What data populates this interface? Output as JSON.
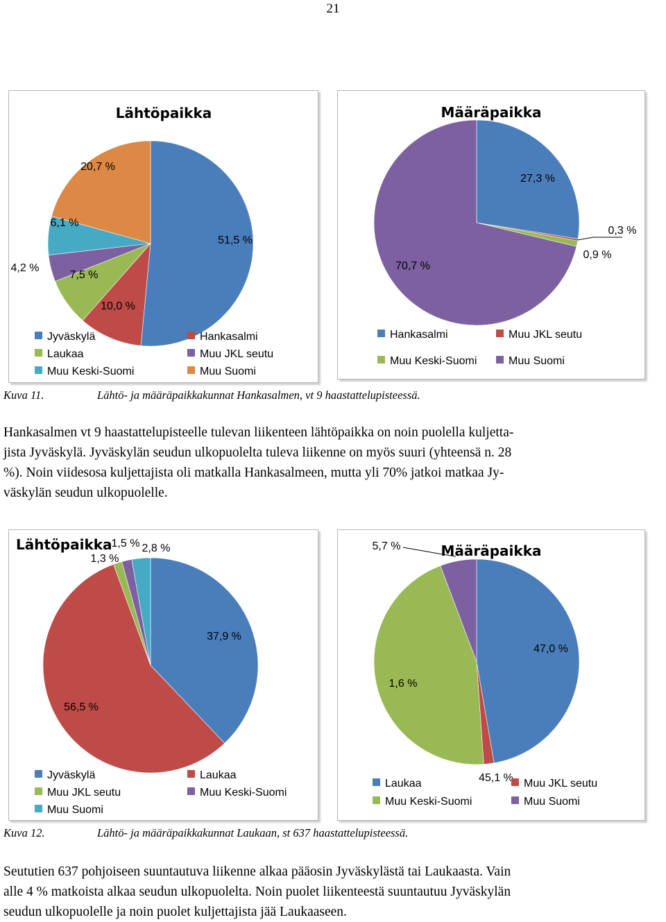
{
  "page_number": "21",
  "chart_data": [
    {
      "type": "pie",
      "title": "Lähtöpaikka",
      "slices": [
        {
          "name": "Jyväskylä",
          "value": 51.5,
          "label": "51,5 %",
          "color": "#4a7ebb"
        },
        {
          "name": "Hankasalmi",
          "value": 10.0,
          "label": "10,0 %",
          "color": "#be4b48"
        },
        {
          "name": "Laukaa",
          "value": 7.5,
          "label": "7,5 %",
          "color": "#98b954"
        },
        {
          "name": "Muu JKL seutu",
          "value": 4.2,
          "label": "4,2 %",
          "color": "#7d60a0"
        },
        {
          "name": "Muu Keski-Suomi",
          "value": 6.1,
          "label": "6,1 %",
          "color": "#46aac5"
        },
        {
          "name": "Muu Suomi",
          "value": 20.7,
          "label": "20,7 %",
          "color": "#dd8844"
        }
      ],
      "legend": [
        "Jyväskylä",
        "Hankasalmi",
        "Laukaa",
        "Muu JKL seutu",
        "Muu Keski-Suomi",
        "Muu Suomi"
      ],
      "legend_position": "bottom"
    },
    {
      "type": "pie",
      "title": "Määräpaikka",
      "slices": [
        {
          "name": "Hankasalmi",
          "value": 27.3,
          "label": "27,3 %",
          "color": "#4a7ebb"
        },
        {
          "name": "Muu JKL seutu",
          "value": 0.3,
          "label": "0,3 %",
          "color": "#be4b48"
        },
        {
          "name": "Muu Keski-Suomi",
          "value": 0.9,
          "label": "0,9 %",
          "color": "#98b954"
        },
        {
          "name": "Muu Suomi",
          "value": 70.7,
          "label": "70,7 %",
          "color": "#7d60a0"
        }
      ],
      "legend": [
        "Hankasalmi",
        "Muu JKL seutu",
        "Muu Keski-Suomi",
        "Muu Suomi"
      ],
      "legend_position": "bottom"
    },
    {
      "type": "pie",
      "title": "Lähtöpaikka",
      "slices": [
        {
          "name": "Jyväskylä",
          "value": 37.9,
          "label": "37,9 %",
          "color": "#4a7ebb"
        },
        {
          "name": "Laukaa",
          "value": 56.5,
          "label": "56,5 %",
          "color": "#be4b48"
        },
        {
          "name": "Muu JKL seutu",
          "value": 1.3,
          "label": "1,3 %",
          "color": "#98b954"
        },
        {
          "name": "Muu Keski-Suomi",
          "value": 1.5,
          "label": "1,5 %",
          "color": "#7d60a0"
        },
        {
          "name": "Muu Suomi",
          "value": 2.8,
          "label": "2,8 %",
          "color": "#46aac5"
        }
      ],
      "legend": [
        "Jyväskylä",
        "Laukaa",
        "Muu JKL seutu",
        "Muu Keski-Suomi",
        "Muu Suomi"
      ],
      "legend_position": "bottom"
    },
    {
      "type": "pie",
      "title": "Määräpaikka",
      "slices": [
        {
          "name": "Laukaa",
          "value": 47.0,
          "label": "47,0 %",
          "color": "#4a7ebb"
        },
        {
          "name": "Muu JKL seutu",
          "value": 1.6,
          "label": "1,6 %",
          "color": "#be4b48"
        },
        {
          "name": "Muu Keski-Suomi",
          "value": 45.1,
          "label": "45,1 %",
          "color": "#98b954"
        },
        {
          "name": "Muu Suomi",
          "value": 5.7,
          "label": "5,7 %",
          "color": "#7d60a0"
        }
      ],
      "legend": [
        "Laukaa",
        "Muu JKL seutu",
        "Muu Keski-Suomi",
        "Muu Suomi"
      ],
      "legend_position": "bottom"
    }
  ],
  "figures": {
    "fig11": {
      "number": "Kuva 11.",
      "text": "Lähtö- ja määräpaikkakunnat Hankasalmen, vt 9 haastattelupisteessä."
    },
    "fig12": {
      "number": "Kuva 12.",
      "text": "Lähtö- ja määräpaikkakunnat Laukaan, st 637 haastattelupisteessä."
    }
  },
  "paragraphs": {
    "p1": [
      "Hankasalmen vt 9 haastattelupisteelle tulevan liikenteen lähtöpaikka on noin puolella kuljetta-",
      "jista Jyväskylä. Jyväskylän seudun ulkopuolelta tuleva liikenne on myös suuri (yhteensä n. 28",
      "%). Noin viidesosa kuljettajista oli matkalla Hankasalmeen, mutta yli 70% jatkoi matkaa Jy-",
      "väskylän seudun ulkopuolelle."
    ],
    "p2": [
      "Seututien 637 pohjoiseen suuntautuva liikenne alkaa pääosin Jyväskylästä tai Laukaasta. Vain",
      "alle 4 % matkoista alkaa seudun ulkopuolelta. Noin puolet liikenteestä suuntautuu Jyväskylän",
      "seudun ulkopuolelle ja noin puolet kuljettajista jää Laukaaseen."
    ]
  }
}
